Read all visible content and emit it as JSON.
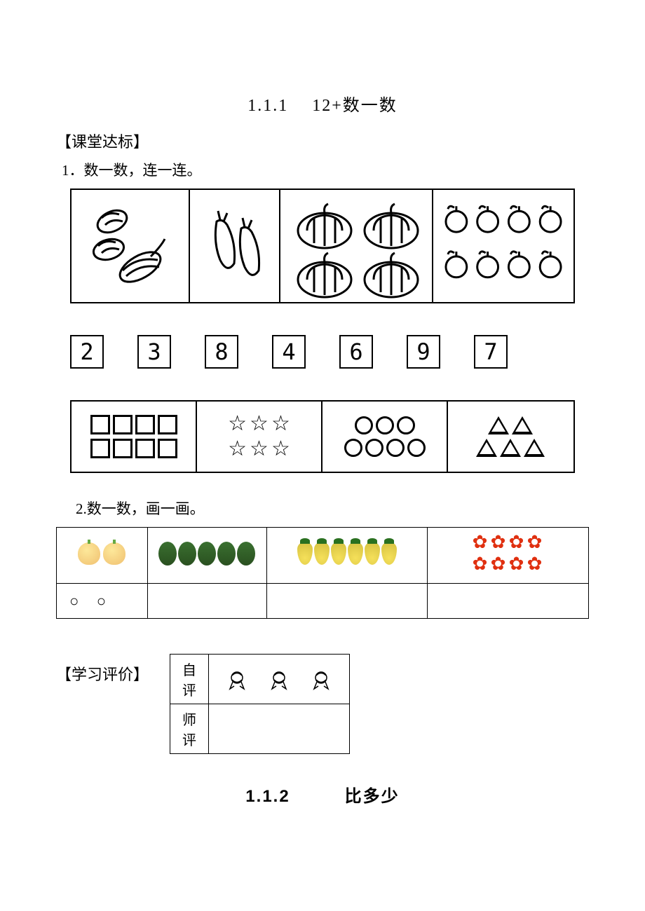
{
  "title": "1.1.1　 12+数一数",
  "section_header": "【课堂达标】",
  "q1": "1．数一数，连一连。",
  "q2": "2.数一数，画一画。",
  "numbers": [
    "2",
    "3",
    "8",
    "4",
    "6",
    "9",
    "7"
  ],
  "grid1": {
    "cells": [
      {
        "name": "vegetables",
        "count": 3
      },
      {
        "name": "eggplants",
        "count": 2
      },
      {
        "name": "pumpkins",
        "count": 4
      },
      {
        "name": "apples",
        "count": 8
      }
    ]
  },
  "grid2": {
    "cells": [
      {
        "shape": "square",
        "rows": [
          4,
          4
        ]
      },
      {
        "shape": "star",
        "rows": [
          3,
          3
        ]
      },
      {
        "shape": "circle",
        "rows": [
          3,
          4
        ]
      },
      {
        "shape": "triangle",
        "rows": [
          2,
          3
        ]
      }
    ]
  },
  "fruit_table": {
    "cells": [
      {
        "name": "peaches",
        "count": 2,
        "answer": "○ ○"
      },
      {
        "name": "melons",
        "count": 5,
        "answer": ""
      },
      {
        "name": "pears",
        "count": 6,
        "answer": ""
      },
      {
        "name": "flowers",
        "count": 8,
        "answer": ""
      }
    ]
  },
  "eval": {
    "header": "【学习评价】",
    "rows": [
      {
        "label": "自评",
        "content": "ribbons"
      },
      {
        "label": "师评",
        "content": ""
      }
    ]
  },
  "title2": "1.1.2　　　比多少",
  "colors": {
    "black": "#000000",
    "white": "#ffffff",
    "peach": "#f0c070",
    "melon": "#2a5020",
    "pear": "#f5e05a",
    "flower": "#e03010"
  }
}
